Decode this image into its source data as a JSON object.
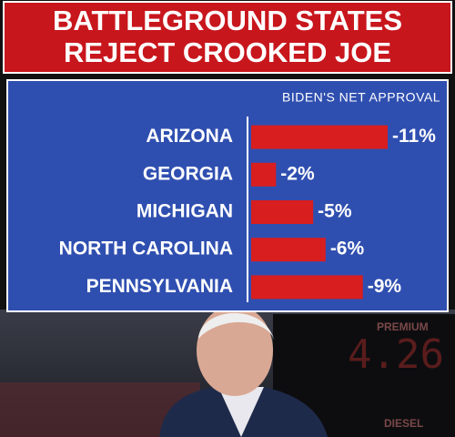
{
  "chart_data": {
    "type": "bar",
    "orientation": "horizontal",
    "title_lines": [
      "BATTLEGROUND STATES",
      "REJECT CROOKED JOE"
    ],
    "subtitle": "BIDEN'S NET APPROVAL",
    "categories": [
      "ARIZONA",
      "GEORGIA",
      "MICHIGAN",
      "NORTH CAROLINA",
      "PENNSYLVANIA"
    ],
    "values": [
      -11,
      -2,
      -5,
      -6,
      -9
    ],
    "value_labels": [
      "-11%",
      "-2%",
      "-5%",
      "-6%",
      "-9%"
    ],
    "color": "#d81e1e"
  },
  "photo_texts": {
    "premium": "PREMIUM",
    "diesel": "DIESEL",
    "price": "4.26"
  }
}
